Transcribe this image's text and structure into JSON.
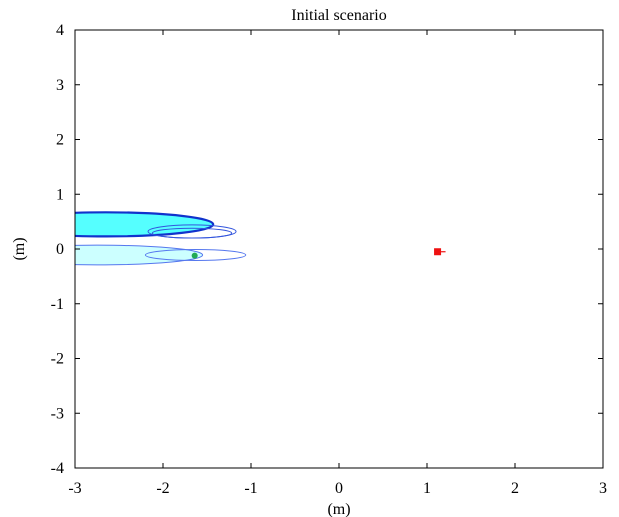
{
  "chart_data": {
    "type": "scatter",
    "title": "Initial scenario",
    "xlabel": "(m)",
    "ylabel": "(m)",
    "xlim": [
      -3,
      3
    ],
    "ylim": [
      -4,
      4
    ],
    "x_ticks": [
      -3,
      -2,
      -1,
      0,
      1,
      2,
      3
    ],
    "y_ticks": [
      -4,
      -3,
      -2,
      -1,
      0,
      1,
      2,
      3,
      4
    ],
    "x_tick_labels": [
      "-3",
      "-2",
      "-1",
      "0",
      "1",
      "2",
      "3"
    ],
    "y_tick_labels": [
      "-4",
      "-3",
      "-2",
      "-1",
      "0",
      "1",
      "2",
      "3",
      "4"
    ],
    "grid": false,
    "ellipses": [
      {
        "cx": -2.75,
        "cy": -0.11,
        "rx": 1.2,
        "ry": 0.18,
        "fill": "#ccffff",
        "stroke": "#5577ee",
        "stroke_width": 1.0
      },
      {
        "cx": -1.63,
        "cy": -0.11,
        "rx": 0.57,
        "ry": 0.1,
        "fill": "none",
        "stroke": "#5577ee",
        "stroke_width": 1.0
      },
      {
        "cx": -2.65,
        "cy": 0.45,
        "rx": 1.22,
        "ry": 0.22,
        "fill": "#55ffff",
        "stroke": "#1133cc",
        "stroke_width": 2.2
      },
      {
        "cx": -1.67,
        "cy": 0.32,
        "rx": 0.5,
        "ry": 0.12,
        "fill": "none",
        "stroke": "#3355dd",
        "stroke_width": 1.0
      },
      {
        "cx": -1.67,
        "cy": 0.29,
        "rx": 0.45,
        "ry": 0.09,
        "fill": "none",
        "stroke": "#3355dd",
        "stroke_width": 1.0
      }
    ],
    "points": [
      {
        "x": -1.64,
        "y": -0.12,
        "marker": "circle",
        "color": "#22aa55"
      },
      {
        "x": 1.12,
        "y": -0.05,
        "marker": "square",
        "color": "#ee1111"
      }
    ],
    "colors": {
      "axis": "#000000",
      "background": "#ffffff"
    }
  }
}
